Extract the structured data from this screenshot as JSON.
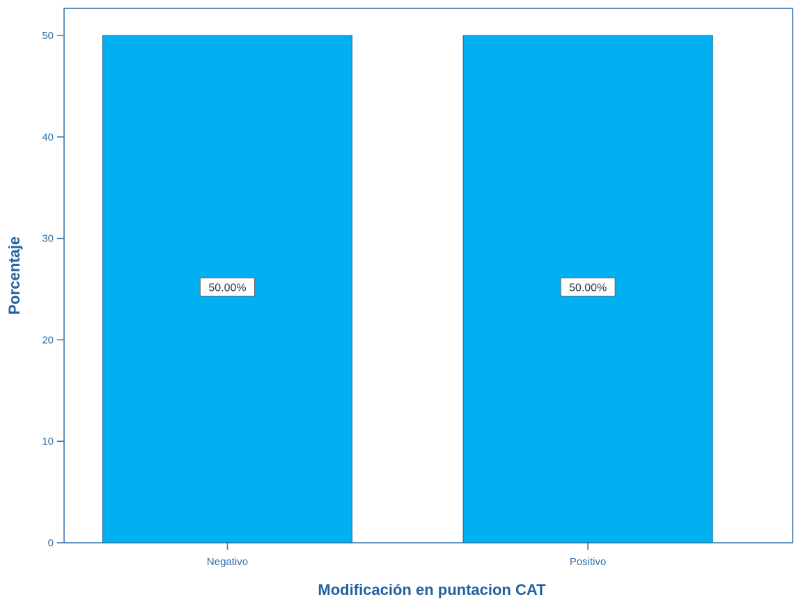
{
  "chart_data": {
    "type": "bar",
    "title": "",
    "xlabel": "Modificación en puntacion CAT",
    "ylabel": "Porcentaje",
    "categories": [
      "Negativo",
      "Positivo"
    ],
    "values": [
      50,
      50
    ],
    "data_labels": [
      "50.00%",
      "50.00%"
    ],
    "ylim": [
      0,
      52
    ],
    "yticks": [
      0,
      10,
      20,
      30,
      40,
      50
    ],
    "ytick_labels": [
      "0",
      "10",
      "20",
      "30",
      "40",
      "50"
    ],
    "grid": false,
    "legend": "none",
    "colors": {
      "bar_fill": "#00b0f0",
      "bar_stroke": "#1f5f8f",
      "axis": "#2f6fa8",
      "text": "#2f6fa8",
      "title": "#2262a0"
    }
  }
}
